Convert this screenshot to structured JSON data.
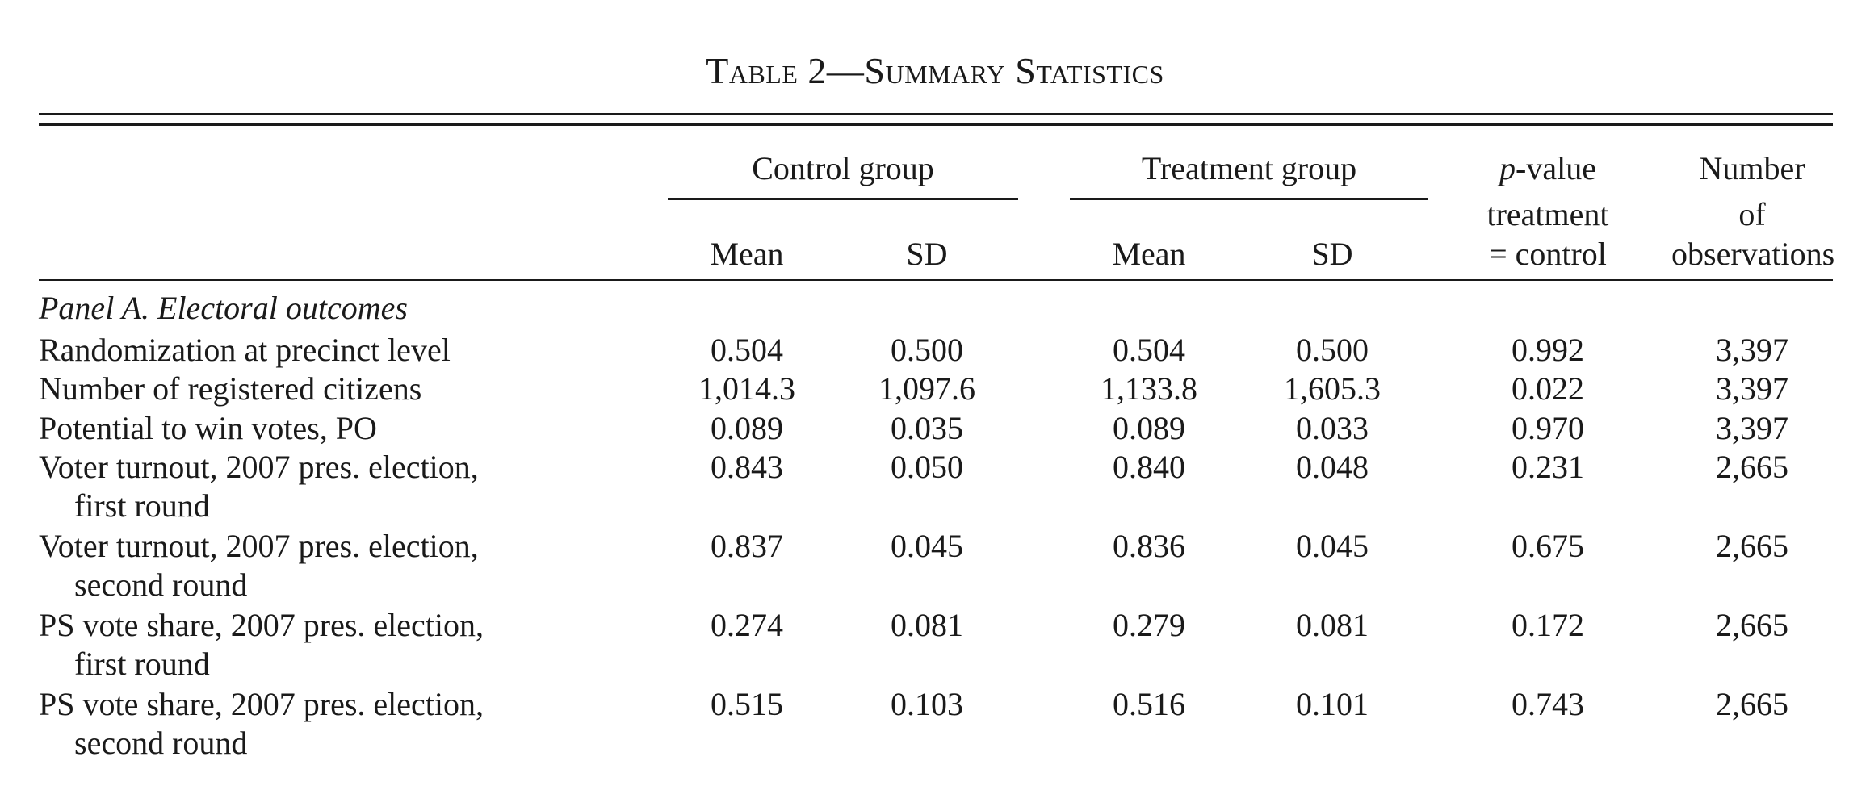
{
  "title": "Table 2—Summary Statistics",
  "headers": {
    "control_group": "Control group",
    "treatment_group": "Treatment group",
    "mean": "Mean",
    "sd": "SD",
    "pvalue_italic": "p",
    "pvalue_rest": "-value",
    "pvalue_line2": "treatment",
    "pvalue_line3": "= control",
    "nobs_line1": "Number",
    "nobs_line2": "of",
    "nobs_line3": "observations"
  },
  "panel_a": {
    "label": "Panel A. Electoral outcomes",
    "rows": [
      {
        "label": "Randomization at precinct level",
        "label2": "",
        "c_mean": "0.504",
        "c_sd": "0.500",
        "t_mean": "0.504",
        "t_sd": "0.500",
        "pvalue": "0.992",
        "n": "3,397"
      },
      {
        "label": "Number of registered citizens",
        "label2": "",
        "c_mean": "1,014.3",
        "c_sd": "1,097.6",
        "t_mean": "1,133.8",
        "t_sd": "1,605.3",
        "pvalue": "0.022",
        "n": "3,397"
      },
      {
        "label": "Potential to win votes, PO",
        "label2": "",
        "c_mean": "0.089",
        "c_sd": "0.035",
        "t_mean": "0.089",
        "t_sd": "0.033",
        "pvalue": "0.970",
        "n": "3,397"
      },
      {
        "label": "Voter turnout, 2007 pres. election,",
        "label2": "first round",
        "c_mean": "0.843",
        "c_sd": "0.050",
        "t_mean": "0.840",
        "t_sd": "0.048",
        "pvalue": "0.231",
        "n": "2,665"
      },
      {
        "label": "Voter turnout, 2007 pres. election,",
        "label2": "second round",
        "c_mean": "0.837",
        "c_sd": "0.045",
        "t_mean": "0.836",
        "t_sd": "0.045",
        "pvalue": "0.675",
        "n": "2,665"
      },
      {
        "label": "PS vote share, 2007 pres. election,",
        "label2": "first round",
        "c_mean": "0.274",
        "c_sd": "0.081",
        "t_mean": "0.279",
        "t_sd": "0.081",
        "pvalue": "0.172",
        "n": "2,665"
      },
      {
        "label": "PS vote share, 2007 pres. election,",
        "label2": "second round",
        "c_mean": "0.515",
        "c_sd": "0.103",
        "t_mean": "0.516",
        "t_sd": "0.101",
        "pvalue": "0.743",
        "n": "2,665"
      }
    ]
  }
}
